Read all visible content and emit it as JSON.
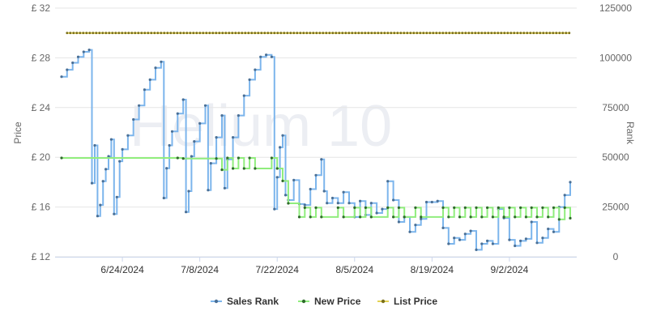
{
  "chart_data": {
    "type": "line",
    "watermark": "Helium 10",
    "left_axis": {
      "title": "Price",
      "ticks": [
        "£ 12",
        "£ 16",
        "£ 20",
        "£ 24",
        "£ 28",
        "£ 32"
      ],
      "min": 12,
      "max": 32
    },
    "right_axis": {
      "title": "Rank",
      "ticks": [
        "0",
        "25000",
        "50000",
        "75000",
        "100000",
        "125000"
      ],
      "min": 0,
      "max": 125000
    },
    "x_axis": {
      "start": "2024-06-13",
      "end": "2024-09-13",
      "tick_dates": [
        "2024-06-24",
        "2024-07-08",
        "2024-07-22",
        "2024-08-05",
        "2024-08-19",
        "2024-09-02"
      ],
      "tick_labels": [
        "6/24/2024",
        "7/8/2024",
        "7/22/2024",
        "8/5/2024",
        "8/19/2024",
        "9/2/2024"
      ]
    },
    "grid": true,
    "legend_position": "bottom-center",
    "series": [
      {
        "name": "Sales Rank",
        "color": "#7cb5ec",
        "axis": "right",
        "step": true,
        "points": [
          [
            "2024-06-13",
            90500
          ],
          [
            "2024-06-14",
            94000
          ],
          [
            "2024-06-15",
            97500
          ],
          [
            "2024-06-16",
            100500
          ],
          [
            "2024-06-17",
            103000
          ],
          [
            "2024-06-18",
            104000
          ],
          [
            "2024-06-18T12",
            37000
          ],
          [
            "2024-06-19",
            56000
          ],
          [
            "2024-06-19T12",
            20500
          ],
          [
            "2024-06-20",
            26000
          ],
          [
            "2024-06-20T12",
            38000
          ],
          [
            "2024-06-21",
            44000
          ],
          [
            "2024-06-21T12",
            50500
          ],
          [
            "2024-06-22",
            59000
          ],
          [
            "2024-06-22T12",
            21500
          ],
          [
            "2024-06-23",
            30000
          ],
          [
            "2024-06-23T12",
            48000
          ],
          [
            "2024-06-24",
            54000
          ],
          [
            "2024-06-25",
            61000
          ],
          [
            "2024-06-26",
            69000
          ],
          [
            "2024-06-27",
            76000
          ],
          [
            "2024-06-28",
            84000
          ],
          [
            "2024-06-29",
            89000
          ],
          [
            "2024-06-30",
            95000
          ],
          [
            "2024-07-01",
            98000
          ],
          [
            "2024-07-01T12",
            29500
          ],
          [
            "2024-07-02",
            44500
          ],
          [
            "2024-07-02T12",
            56000
          ],
          [
            "2024-07-03",
            63000
          ],
          [
            "2024-07-04",
            72000
          ],
          [
            "2024-07-05",
            79000
          ],
          [
            "2024-07-05T12",
            22500
          ],
          [
            "2024-07-06",
            33000
          ],
          [
            "2024-07-06T12",
            50500
          ],
          [
            "2024-07-07",
            58000
          ],
          [
            "2024-07-08",
            67000
          ],
          [
            "2024-07-09",
            76000
          ],
          [
            "2024-07-09T12",
            33500
          ],
          [
            "2024-07-10",
            47000
          ],
          [
            "2024-07-11",
            60000
          ],
          [
            "2024-07-12",
            71000
          ],
          [
            "2024-07-12T12",
            34500
          ],
          [
            "2024-07-13",
            49000
          ],
          [
            "2024-07-14",
            60000
          ],
          [
            "2024-07-15",
            71000
          ],
          [
            "2024-07-16",
            81000
          ],
          [
            "2024-07-17",
            89000
          ],
          [
            "2024-07-18",
            94000
          ],
          [
            "2024-07-19",
            100500
          ],
          [
            "2024-07-20",
            101500
          ],
          [
            "2024-07-21",
            100500
          ],
          [
            "2024-07-21T12",
            24000
          ],
          [
            "2024-07-22",
            40000
          ],
          [
            "2024-07-22T12",
            55000
          ],
          [
            "2024-07-23",
            61000
          ],
          [
            "2024-07-23T12",
            31000
          ],
          [
            "2024-07-24",
            28500
          ],
          [
            "2024-07-25",
            38500
          ],
          [
            "2024-07-26",
            26500
          ],
          [
            "2024-07-27",
            26000
          ],
          [
            "2024-07-28",
            34000
          ],
          [
            "2024-07-29",
            41000
          ],
          [
            "2024-07-30",
            49000
          ],
          [
            "2024-07-30T12",
            33000
          ],
          [
            "2024-07-31",
            27000
          ],
          [
            "2024-08-01",
            29500
          ],
          [
            "2024-08-02",
            27000
          ],
          [
            "2024-08-03",
            32500
          ],
          [
            "2024-08-04",
            27000
          ],
          [
            "2024-08-05",
            20000
          ],
          [
            "2024-08-06",
            28000
          ],
          [
            "2024-08-07",
            21000
          ],
          [
            "2024-08-08",
            27000
          ],
          [
            "2024-08-09",
            22000
          ],
          [
            "2024-08-10",
            24000
          ],
          [
            "2024-08-11",
            38000
          ],
          [
            "2024-08-12",
            28500
          ],
          [
            "2024-08-13",
            17500
          ],
          [
            "2024-08-14",
            20000
          ],
          [
            "2024-08-15",
            12500
          ],
          [
            "2024-08-16",
            16000
          ],
          [
            "2024-08-17",
            19000
          ],
          [
            "2024-08-18",
            27500
          ],
          [
            "2024-08-19",
            27500
          ],
          [
            "2024-08-20",
            28000
          ],
          [
            "2024-08-21",
            14500
          ],
          [
            "2024-08-22",
            6500
          ],
          [
            "2024-08-23",
            9500
          ],
          [
            "2024-08-24",
            8500
          ],
          [
            "2024-08-25",
            11500
          ],
          [
            "2024-08-26",
            13000
          ],
          [
            "2024-08-27",
            3500
          ],
          [
            "2024-08-28",
            6500
          ],
          [
            "2024-08-29",
            8000
          ],
          [
            "2024-08-30",
            6500
          ],
          [
            "2024-08-31",
            24000
          ],
          [
            "2024-09-01",
            19500
          ],
          [
            "2024-09-02",
            8500
          ],
          [
            "2024-09-03",
            5500
          ],
          [
            "2024-09-04",
            8000
          ],
          [
            "2024-09-05",
            9000
          ],
          [
            "2024-09-06",
            17500
          ],
          [
            "2024-09-07",
            7000
          ],
          [
            "2024-09-08",
            9500
          ],
          [
            "2024-09-09",
            14000
          ],
          [
            "2024-09-10",
            12500
          ],
          [
            "2024-09-11",
            25000
          ],
          [
            "2024-09-12",
            31000
          ],
          [
            "2024-09-13",
            37500
          ]
        ]
      },
      {
        "name": "New Price",
        "color": "#90ed7d",
        "axis": "left",
        "step": true,
        "points": [
          [
            "2024-06-13",
            19.95
          ],
          [
            "2024-07-04",
            19.95
          ],
          [
            "2024-07-05",
            19.9
          ],
          [
            "2024-07-11",
            19.9
          ],
          [
            "2024-07-12",
            19.0
          ],
          [
            "2024-07-13",
            19.95
          ],
          [
            "2024-07-14",
            19.1
          ],
          [
            "2024-07-15",
            19.95
          ],
          [
            "2024-07-16",
            19.1
          ],
          [
            "2024-07-17",
            19.95
          ],
          [
            "2024-07-18",
            19.1
          ],
          [
            "2024-07-21",
            19.95
          ],
          [
            "2024-07-22",
            19.1
          ],
          [
            "2024-07-23",
            18.1
          ],
          [
            "2024-07-24",
            16.3
          ],
          [
            "2024-07-26",
            15.2
          ],
          [
            "2024-07-27",
            15.95
          ],
          [
            "2024-07-28",
            15.2
          ],
          [
            "2024-07-29",
            15.95
          ],
          [
            "2024-07-30",
            15.2
          ],
          [
            "2024-08-02",
            15.95
          ],
          [
            "2024-08-03",
            15.2
          ],
          [
            "2024-08-05",
            15.95
          ],
          [
            "2024-08-06",
            15.2
          ],
          [
            "2024-08-07",
            15.95
          ],
          [
            "2024-08-08",
            15.2
          ],
          [
            "2024-08-11",
            15.95
          ],
          [
            "2024-08-12",
            15.2
          ],
          [
            "2024-08-13",
            15.95
          ],
          [
            "2024-08-14",
            15.2
          ],
          [
            "2024-08-16",
            15.95
          ],
          [
            "2024-08-17",
            15.2
          ],
          [
            "2024-08-21",
            15.95
          ],
          [
            "2024-08-22",
            15.2
          ],
          [
            "2024-08-23",
            15.95
          ],
          [
            "2024-08-24",
            15.2
          ],
          [
            "2024-08-25",
            15.95
          ],
          [
            "2024-08-26",
            15.2
          ],
          [
            "2024-08-27",
            15.95
          ],
          [
            "2024-08-28",
            15.2
          ],
          [
            "2024-08-29",
            15.95
          ],
          [
            "2024-08-30",
            15.2
          ],
          [
            "2024-08-31",
            15.95
          ],
          [
            "2024-09-01",
            15.2
          ],
          [
            "2024-09-02",
            15.95
          ],
          [
            "2024-09-03",
            15.2
          ],
          [
            "2024-09-04",
            15.95
          ],
          [
            "2024-09-05",
            15.2
          ],
          [
            "2024-09-06",
            15.95
          ],
          [
            "2024-09-07",
            15.2
          ],
          [
            "2024-09-08",
            15.95
          ],
          [
            "2024-09-09",
            15.2
          ],
          [
            "2024-09-10",
            15.95
          ],
          [
            "2024-09-11",
            15.0
          ],
          [
            "2024-09-12",
            15.95
          ],
          [
            "2024-09-13",
            15.1
          ]
        ]
      },
      {
        "name": "List Price",
        "color": "#e4d354",
        "axis": "left",
        "step": false,
        "points": [
          [
            "2024-06-14",
            30.0
          ],
          [
            "2024-09-13",
            30.0
          ]
        ]
      }
    ]
  }
}
